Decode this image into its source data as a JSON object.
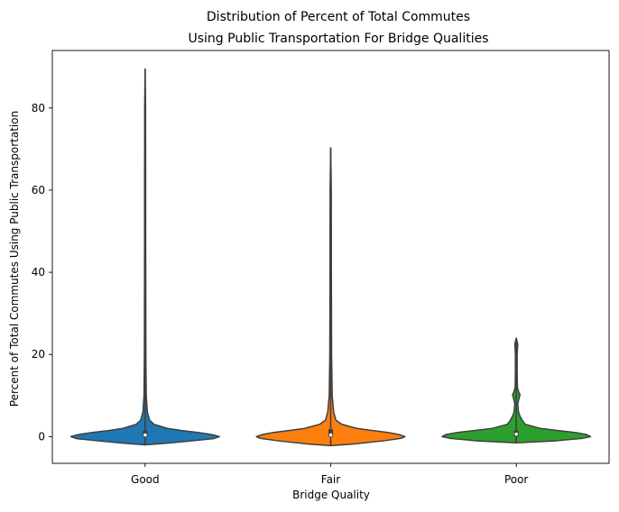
{
  "chart_data": {
    "type": "violin",
    "title_lines": [
      "Distribution of Percent of Total Commutes",
      "Using Public Transportation For Bridge Qualities"
    ],
    "xlabel": "Bridge Quality",
    "ylabel": "Percent of Total Commutes Using Public Transportation",
    "categories": [
      "Good",
      "Fair",
      "Poor"
    ],
    "ylim": [
      -6.5,
      94
    ],
    "yticks": [
      0,
      20,
      40,
      60,
      80
    ],
    "grid": false,
    "series": [
      {
        "category": "Good",
        "color": "#1f77b4",
        "min": -2.0,
        "q1": 0.0,
        "median": 0.4,
        "q3": 1.5,
        "max": 89.5,
        "density": [
          [
            -2.0,
            0.0
          ],
          [
            -1.6,
            0.3
          ],
          [
            -1.0,
            0.65
          ],
          [
            -0.5,
            0.92
          ],
          [
            0.0,
            1.0
          ],
          [
            0.5,
            0.9
          ],
          [
            1.0,
            0.72
          ],
          [
            1.5,
            0.48
          ],
          [
            2.0,
            0.3
          ],
          [
            3.0,
            0.12
          ],
          [
            4.0,
            0.06
          ],
          [
            6.0,
            0.03
          ],
          [
            10.0,
            0.015
          ],
          [
            20.0,
            0.01
          ],
          [
            40.0,
            0.008
          ],
          [
            60.0,
            0.007
          ],
          [
            80.0,
            0.006
          ],
          [
            89.5,
            0.0
          ]
        ]
      },
      {
        "category": "Fair",
        "color": "#ff7f0e",
        "min": -2.2,
        "q1": 0.0,
        "median": 0.4,
        "q3": 1.8,
        "max": 70.3,
        "density": [
          [
            -2.2,
            0.0
          ],
          [
            -1.8,
            0.3
          ],
          [
            -1.0,
            0.72
          ],
          [
            -0.4,
            0.95
          ],
          [
            0.0,
            1.0
          ],
          [
            0.5,
            0.92
          ],
          [
            1.0,
            0.78
          ],
          [
            1.5,
            0.55
          ],
          [
            2.0,
            0.35
          ],
          [
            3.0,
            0.15
          ],
          [
            4.0,
            0.07
          ],
          [
            6.0,
            0.04
          ],
          [
            10.0,
            0.02
          ],
          [
            20.0,
            0.012
          ],
          [
            40.0,
            0.009
          ],
          [
            60.0,
            0.008
          ],
          [
            70.3,
            0.0
          ]
        ]
      },
      {
        "category": "Poor",
        "color": "#2ca02c",
        "min": -1.5,
        "q1": 0.0,
        "median": 0.6,
        "q3": 1.5,
        "max": 24.0,
        "density": [
          [
            -1.5,
            0.0
          ],
          [
            -1.0,
            0.55
          ],
          [
            -0.4,
            0.9
          ],
          [
            0.0,
            1.0
          ],
          [
            0.5,
            0.95
          ],
          [
            1.0,
            0.8
          ],
          [
            1.5,
            0.55
          ],
          [
            2.0,
            0.32
          ],
          [
            3.0,
            0.12
          ],
          [
            4.0,
            0.08
          ],
          [
            5.0,
            0.05
          ],
          [
            6.0,
            0.03
          ],
          [
            8.0,
            0.02
          ],
          [
            9.5,
            0.04
          ],
          [
            10.2,
            0.05
          ],
          [
            11.0,
            0.03
          ],
          [
            12.0,
            0.015
          ],
          [
            16.0,
            0.012
          ],
          [
            20.0,
            0.012
          ],
          [
            22.5,
            0.02
          ],
          [
            24.0,
            0.0
          ]
        ]
      }
    ]
  }
}
